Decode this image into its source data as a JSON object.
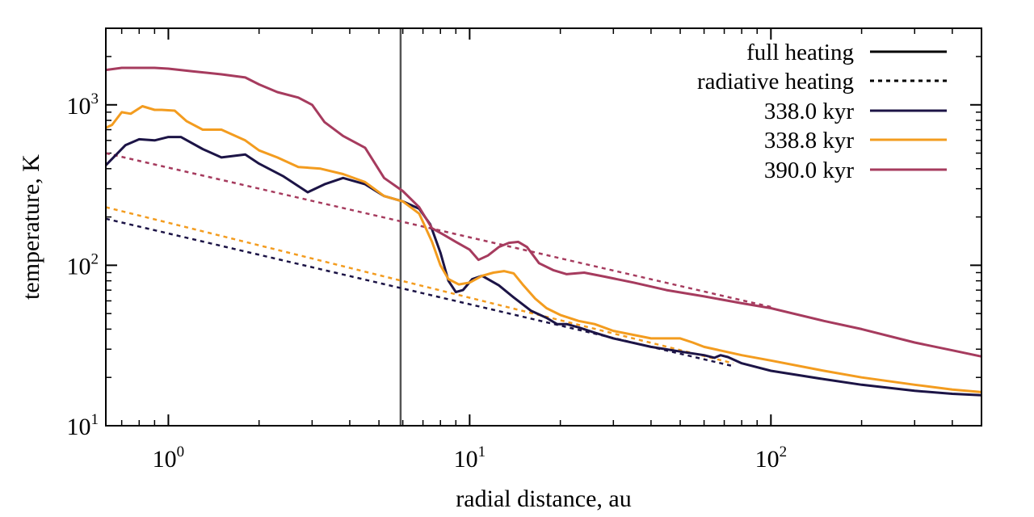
{
  "chart_data": {
    "type": "line",
    "title": "",
    "xlabel": "radial distance, au",
    "ylabel": "temperature, K",
    "xscale": "log",
    "yscale": "log",
    "xlim": [
      0.62,
      500
    ],
    "ylim": [
      10,
      3000
    ],
    "grid": false,
    "legend_position": "top-right",
    "x_ticks": [
      {
        "value": 1,
        "base": "10",
        "exp": "0"
      },
      {
        "value": 10,
        "base": "10",
        "exp": "1"
      },
      {
        "value": 100,
        "base": "10",
        "exp": "2"
      }
    ],
    "y_ticks": [
      {
        "value": 10,
        "base": "10",
        "exp": "1"
      },
      {
        "value": 100,
        "base": "10",
        "exp": "2"
      },
      {
        "value": 1000,
        "base": "10",
        "exp": "3"
      }
    ],
    "vertical_marker": {
      "x": 5.9,
      "color": "#555555"
    },
    "legend": [
      {
        "label": "full heating",
        "style": "solid",
        "color": "#000000"
      },
      {
        "label": "radiative heating",
        "style": "dotted",
        "color": "#000000"
      },
      {
        "label": "338.0 kyr",
        "style": "solid",
        "color": "#1c1446"
      },
      {
        "label": "338.8 kyr",
        "style": "solid",
        "color": "#f39c1f"
      },
      {
        "label": "390.0 kyr",
        "style": "solid",
        "color": "#a63b5e"
      }
    ],
    "series": [
      {
        "name": "338.0 kyr full heating",
        "color": "#1c1446",
        "style": "solid",
        "x": [
          0.62,
          0.65,
          0.72,
          0.8,
          0.9,
          1.0,
          1.1,
          1.3,
          1.5,
          1.8,
          2.0,
          2.4,
          2.9,
          3.3,
          3.8,
          4.5,
          5.2,
          6.0,
          6.8,
          7.4,
          8.0,
          8.5,
          9.0,
          9.5,
          10.2,
          11.0,
          12.5,
          14.0,
          16.0,
          18.0,
          19.5,
          21,
          23,
          26,
          30,
          40,
          50,
          60,
          65,
          68,
          72,
          80,
          100,
          150,
          200,
          300,
          400,
          500
        ],
        "y": [
          420,
          460,
          560,
          610,
          600,
          630,
          630,
          530,
          470,
          490,
          430,
          360,
          285,
          320,
          350,
          320,
          270,
          250,
          225,
          180,
          120,
          80,
          68,
          70,
          82,
          86,
          75,
          63,
          52,
          47,
          43,
          43,
          41,
          38,
          35,
          31,
          29,
          27.5,
          26.5,
          27.5,
          26.8,
          24.5,
          22,
          19.5,
          18,
          16.5,
          15.8,
          15.5
        ]
      },
      {
        "name": "338.8 kyr full heating",
        "color": "#f39c1f",
        "style": "solid",
        "x": [
          0.62,
          0.65,
          0.7,
          0.75,
          0.82,
          0.9,
          0.95,
          1.05,
          1.15,
          1.3,
          1.5,
          1.8,
          2.0,
          2.3,
          2.7,
          3.2,
          3.8,
          4.5,
          5.2,
          6.0,
          6.8,
          7.5,
          8.0,
          8.5,
          9.2,
          10,
          11,
          12,
          13,
          14,
          15,
          16.5,
          18,
          20,
          23,
          26,
          30,
          40,
          45,
          50,
          55,
          60,
          80,
          100,
          150,
          200,
          300,
          400,
          500
        ],
        "y": [
          720,
          750,
          900,
          880,
          980,
          930,
          930,
          920,
          790,
          700,
          700,
          600,
          520,
          470,
          410,
          400,
          370,
          330,
          270,
          250,
          210,
          140,
          100,
          82,
          76,
          78,
          86,
          90,
          92,
          89,
          76,
          62,
          54,
          49,
          45,
          43,
          39,
          35,
          35,
          35,
          33,
          31,
          27.5,
          25.5,
          22,
          20,
          18,
          16.8,
          16.2
        ]
      },
      {
        "name": "390.0 kyr full heating",
        "color": "#a63b5e",
        "style": "solid",
        "x": [
          0.62,
          0.7,
          0.8,
          0.9,
          1.0,
          1.2,
          1.5,
          1.8,
          2.0,
          2.3,
          2.7,
          3.0,
          3.3,
          3.8,
          4.5,
          5.2,
          6.0,
          6.8,
          7.5,
          8.2,
          9.0,
          10,
          10.7,
          11.5,
          12.5,
          13.5,
          14.5,
          15.5,
          17,
          19,
          21,
          24,
          28,
          35,
          45,
          60,
          80,
          100,
          150,
          200,
          300,
          400,
          500
        ],
        "y": [
          1650,
          1700,
          1700,
          1700,
          1680,
          1620,
          1550,
          1480,
          1340,
          1200,
          1110,
          1000,
          780,
          640,
          540,
          350,
          290,
          230,
          170,
          155,
          140,
          125,
          108,
          115,
          130,
          138,
          140,
          130,
          103,
          93,
          88,
          90,
          85,
          78,
          70,
          64,
          58,
          54,
          45,
          40,
          33,
          29.5,
          27
        ]
      },
      {
        "name": "338.0 kyr radiative heating",
        "color": "#1c1446",
        "style": "dotted",
        "x": [
          0.62,
          75
        ],
        "y": [
          195,
          23.5
        ]
      },
      {
        "name": "338.8 kyr radiative heating",
        "color": "#f39c1f",
        "style": "dotted",
        "x": [
          0.62,
          75
        ],
        "y": [
          230,
          24.5
        ]
      },
      {
        "name": "390.0 kyr radiative heating",
        "color": "#a63b5e",
        "style": "dotted",
        "x": [
          0.62,
          100
        ],
        "y": [
          500,
          55
        ]
      }
    ]
  }
}
